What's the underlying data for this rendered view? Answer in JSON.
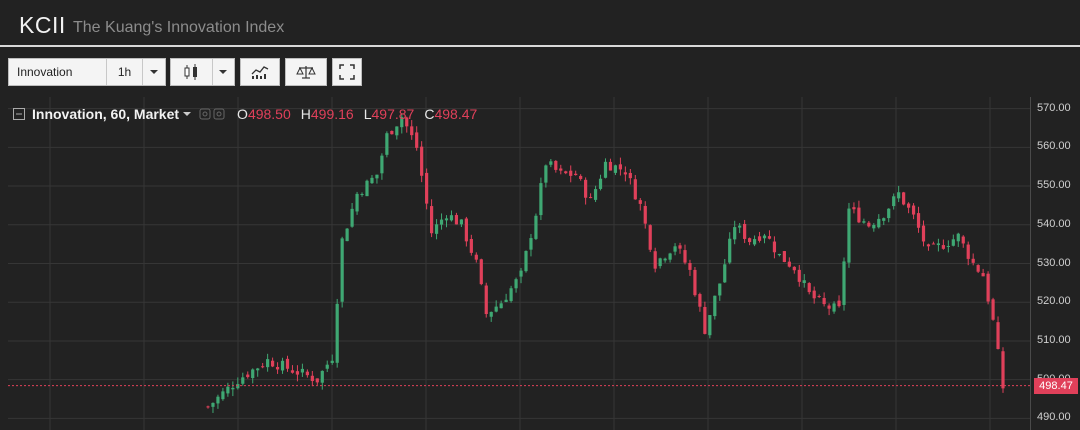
{
  "header": {
    "ticker": "KCII",
    "subtitle": "The Kuang's Innovation Index"
  },
  "toolbar": {
    "symbol": "Innovation",
    "interval": "1h"
  },
  "legend": {
    "series_name": "Innovation, 60, Market",
    "open_label": "O",
    "open": "498.50",
    "high_label": "H",
    "high": "499.16",
    "low_label": "L",
    "low": "497.87",
    "close_label": "C",
    "close": "498.47"
  },
  "last_price": "498.47",
  "colors": {
    "up": "#3fa873",
    "down": "#e0405a",
    "background": "#222222",
    "grid": "#363636",
    "price_line": "#e0405a"
  },
  "chart_data": {
    "type": "candlestick",
    "title": "Innovation, 60, Market",
    "ylim": [
      487,
      573
    ],
    "yticks": [
      490,
      500,
      510,
      520,
      530,
      540,
      550,
      560,
      570
    ],
    "last_price": 498.47,
    "grid": true,
    "approx_close_path": [
      [
        0,
        493
      ],
      [
        6,
        500
      ],
      [
        12,
        505
      ],
      [
        16,
        503
      ],
      [
        22,
        500
      ],
      [
        25,
        506
      ],
      [
        27,
        536
      ],
      [
        30,
        548
      ],
      [
        34,
        553
      ],
      [
        36,
        563
      ],
      [
        39,
        568
      ],
      [
        42,
        560
      ],
      [
        45,
        538
      ],
      [
        48,
        543
      ],
      [
        51,
        540
      ],
      [
        54,
        530
      ],
      [
        56,
        517
      ],
      [
        59,
        520
      ],
      [
        63,
        527
      ],
      [
        66,
        543
      ],
      [
        68,
        556
      ],
      [
        71,
        553
      ],
      [
        74,
        553
      ],
      [
        77,
        546
      ],
      [
        80,
        556
      ],
      [
        84,
        554
      ],
      [
        87,
        545
      ],
      [
        90,
        530
      ],
      [
        94,
        535
      ],
      [
        97,
        528
      ],
      [
        100,
        513
      ],
      [
        103,
        525
      ],
      [
        106,
        540
      ],
      [
        109,
        536
      ],
      [
        112,
        538
      ],
      [
        115,
        532
      ],
      [
        118,
        529
      ],
      [
        121,
        522
      ],
      [
        124,
        519
      ],
      [
        127,
        518
      ],
      [
        129,
        544
      ],
      [
        133,
        540
      ],
      [
        136,
        543
      ],
      [
        139,
        548
      ],
      [
        142,
        542
      ],
      [
        145,
        533
      ],
      [
        148,
        535
      ],
      [
        151,
        537
      ],
      [
        154,
        530
      ],
      [
        156,
        527
      ],
      [
        158,
        515
      ],
      [
        160,
        498
      ]
    ]
  }
}
